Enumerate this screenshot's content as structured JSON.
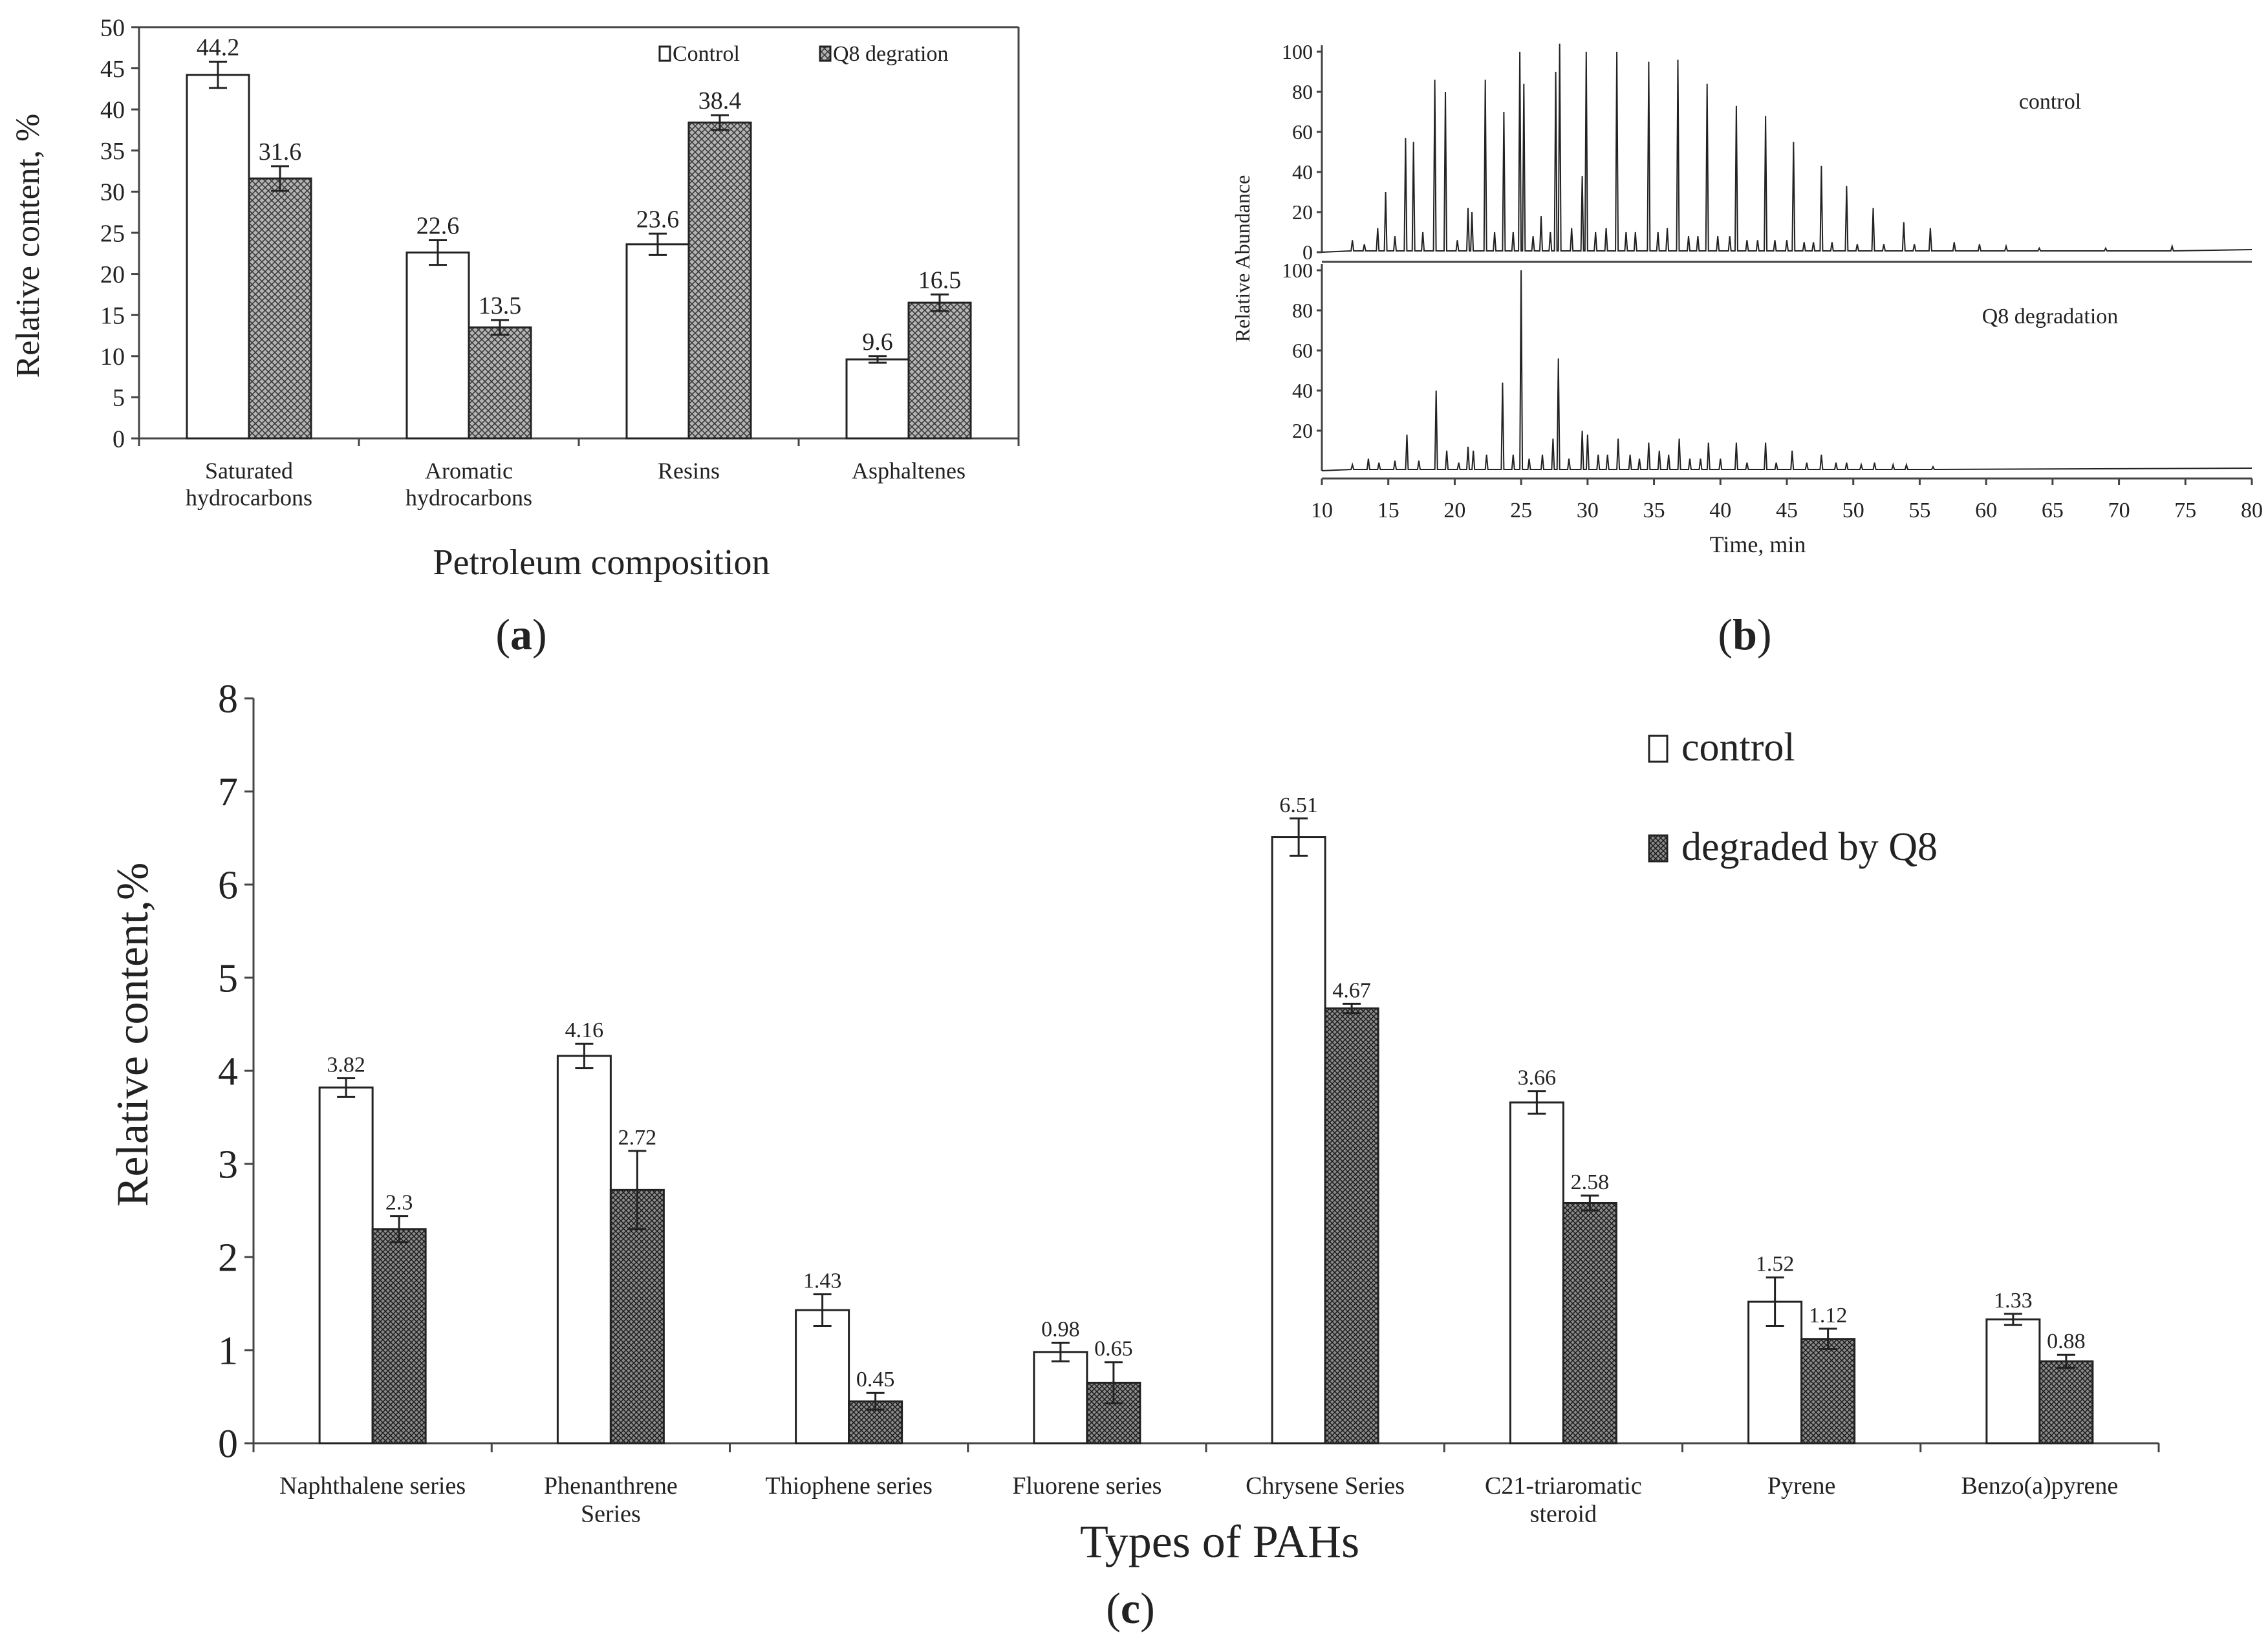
{
  "panels": {
    "a": {
      "caption_letter": "a"
    },
    "b": {
      "caption_letter": "b"
    },
    "c": {
      "caption_letter": "c"
    }
  },
  "chart_data": [
    {
      "id": "a",
      "type": "bar",
      "xlabel": "Petroleum composition",
      "ylabel": "Relative content, %",
      "ylim": [
        0,
        50
      ],
      "yticks": [
        0,
        5,
        10,
        15,
        20,
        25,
        30,
        35,
        40,
        45,
        50
      ],
      "categories": [
        [
          "Saturated",
          "hydrocarbons"
        ],
        [
          "Aromatic",
          "hydrocarbons"
        ],
        [
          "Resins"
        ],
        [
          "Asphaltenes"
        ]
      ],
      "series": [
        {
          "name": "Control",
          "values": [
            44.2,
            22.6,
            23.6,
            9.6
          ],
          "errors": [
            1.6,
            1.5,
            1.3,
            0.4
          ],
          "labels": [
            "44.2",
            "22.6",
            "23.6",
            "9.6"
          ]
        },
        {
          "name": "Q8 degration",
          "values": [
            31.6,
            13.5,
            38.4,
            16.5
          ],
          "errors": [
            1.5,
            0.9,
            0.9,
            1.0
          ],
          "labels": [
            "31.6",
            "13.5",
            "38.4",
            "16.5"
          ]
        }
      ],
      "legend_position": "top-right"
    },
    {
      "id": "b",
      "type": "line",
      "xlabel": "Time, min",
      "ylabel": "Relative Abundance",
      "xlim": [
        10,
        80
      ],
      "xticks": [
        10,
        15,
        20,
        25,
        30,
        35,
        40,
        45,
        50,
        55,
        60,
        65,
        70,
        75,
        80
      ],
      "top": {
        "label": "control",
        "ylim": [
          0,
          100
        ],
        "yticks": [
          0,
          20,
          40,
          60,
          80,
          100
        ],
        "peaks": [
          [
            12.3,
            6
          ],
          [
            13.2,
            4
          ],
          [
            14.2,
            12
          ],
          [
            14.8,
            30
          ],
          [
            15.5,
            8
          ],
          [
            16.3,
            57
          ],
          [
            16.9,
            55
          ],
          [
            17.6,
            10
          ],
          [
            18.5,
            86
          ],
          [
            19.3,
            80
          ],
          [
            20.2,
            6
          ],
          [
            21.0,
            22
          ],
          [
            21.3,
            20
          ],
          [
            22.3,
            86
          ],
          [
            23.0,
            10
          ],
          [
            23.7,
            70
          ],
          [
            24.4,
            10
          ],
          [
            24.9,
            100
          ],
          [
            25.2,
            84
          ],
          [
            25.9,
            8
          ],
          [
            26.5,
            18
          ],
          [
            27.2,
            10
          ],
          [
            27.6,
            90
          ],
          [
            27.9,
            104
          ],
          [
            28.8,
            12
          ],
          [
            29.6,
            38
          ],
          [
            29.9,
            100
          ],
          [
            30.6,
            10
          ],
          [
            31.4,
            12
          ],
          [
            32.2,
            100
          ],
          [
            32.9,
            10
          ],
          [
            33.6,
            10
          ],
          [
            34.6,
            95
          ],
          [
            35.3,
            10
          ],
          [
            36.0,
            12
          ],
          [
            36.8,
            96
          ],
          [
            37.6,
            8
          ],
          [
            38.3,
            8
          ],
          [
            39.0,
            84
          ],
          [
            39.8,
            8
          ],
          [
            40.7,
            8
          ],
          [
            41.2,
            73
          ],
          [
            42.0,
            6
          ],
          [
            42.8,
            6
          ],
          [
            43.4,
            68
          ],
          [
            44.1,
            6
          ],
          [
            45.0,
            6
          ],
          [
            45.5,
            55
          ],
          [
            46.3,
            5
          ],
          [
            47.0,
            5
          ],
          [
            47.6,
            43
          ],
          [
            48.4,
            5
          ],
          [
            49.5,
            33
          ],
          [
            50.3,
            4
          ],
          [
            51.5,
            22
          ],
          [
            52.3,
            4
          ],
          [
            53.8,
            15
          ],
          [
            54.6,
            4
          ],
          [
            55.8,
            12
          ],
          [
            57.6,
            5
          ],
          [
            59.5,
            4
          ],
          [
            61.5,
            3
          ],
          [
            64.0,
            2
          ],
          [
            69.0,
            2
          ],
          [
            74.0,
            3
          ]
        ]
      },
      "bottom": {
        "label": "Q8 degradation",
        "ylim": [
          0,
          100
        ],
        "yticks": [
          20,
          40,
          60,
          80,
          100
        ],
        "peaks": [
          [
            12.3,
            3
          ],
          [
            13.5,
            6
          ],
          [
            14.3,
            4
          ],
          [
            15.5,
            5
          ],
          [
            16.4,
            18
          ],
          [
            17.3,
            5
          ],
          [
            18.6,
            40
          ],
          [
            19.4,
            10
          ],
          [
            20.3,
            4
          ],
          [
            21.0,
            12
          ],
          [
            21.4,
            10
          ],
          [
            22.4,
            8
          ],
          [
            23.6,
            44
          ],
          [
            24.4,
            8
          ],
          [
            25.0,
            100
          ],
          [
            25.6,
            6
          ],
          [
            26.6,
            8
          ],
          [
            27.4,
            16
          ],
          [
            27.8,
            56
          ],
          [
            28.6,
            6
          ],
          [
            29.6,
            20
          ],
          [
            30.0,
            18
          ],
          [
            30.8,
            8
          ],
          [
            31.5,
            8
          ],
          [
            32.3,
            16
          ],
          [
            33.2,
            8
          ],
          [
            33.9,
            6
          ],
          [
            34.6,
            14
          ],
          [
            35.4,
            10
          ],
          [
            36.1,
            8
          ],
          [
            36.9,
            16
          ],
          [
            37.7,
            6
          ],
          [
            38.5,
            6
          ],
          [
            39.1,
            14
          ],
          [
            40.0,
            6
          ],
          [
            41.2,
            14
          ],
          [
            42.0,
            4
          ],
          [
            43.4,
            14
          ],
          [
            44.2,
            4
          ],
          [
            45.4,
            10
          ],
          [
            46.5,
            4
          ],
          [
            47.6,
            8
          ],
          [
            48.7,
            4
          ],
          [
            49.5,
            4
          ],
          [
            50.6,
            3
          ],
          [
            51.6,
            4
          ],
          [
            53.0,
            3
          ],
          [
            54.0,
            3
          ],
          [
            56.0,
            2
          ]
        ]
      }
    },
    {
      "id": "c",
      "type": "bar",
      "xlabel": "Types of PAHs",
      "ylabel": "Relative content,%",
      "ylim": [
        0,
        8
      ],
      "yticks": [
        0,
        1,
        2,
        3,
        4,
        5,
        6,
        7,
        8
      ],
      "categories": [
        [
          "Naphthalene series"
        ],
        [
          "Phenanthrene",
          "Series"
        ],
        [
          "Thiophene series"
        ],
        [
          "Fluorene series"
        ],
        [
          "Chrysene Series"
        ],
        [
          "C21-triaromatic",
          "steroid"
        ],
        [
          "Pyrene"
        ],
        [
          "Benzo(a)pyrene"
        ]
      ],
      "series": [
        {
          "name": "control",
          "values": [
            3.82,
            4.16,
            1.43,
            0.98,
            6.51,
            3.66,
            1.52,
            1.33
          ],
          "errors": [
            0.1,
            0.13,
            0.17,
            0.1,
            0.2,
            0.12,
            0.26,
            0.06
          ],
          "labels": [
            "3.82",
            "4.16",
            "1.43",
            "0.98",
            "6.51",
            "3.66",
            "1.52",
            "1.33"
          ]
        },
        {
          "name": "degraded by Q8",
          "values": [
            2.3,
            2.72,
            0.45,
            0.65,
            4.67,
            2.58,
            1.12,
            0.88
          ],
          "errors": [
            0.14,
            0.42,
            0.09,
            0.22,
            0.05,
            0.08,
            0.11,
            0.07
          ],
          "labels": [
            "2.3",
            "2.72",
            "0.45",
            "0.65",
            "4.67",
            "2.58",
            "1.12",
            "0.88"
          ]
        }
      ],
      "legend_position": "top-right"
    }
  ]
}
